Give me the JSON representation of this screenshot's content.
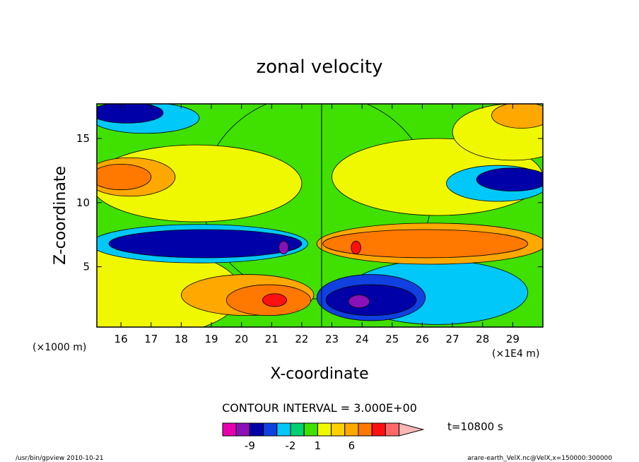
{
  "chart_data": {
    "type": "heatmap",
    "title": "zonal velocity",
    "xlabel": "X-coordinate",
    "ylabel": "Z-coordinate",
    "x_ticks": [
      16,
      17,
      18,
      19,
      20,
      21,
      22,
      23,
      24,
      25,
      26,
      27,
      28,
      29
    ],
    "x_unit": "(×1E4 m)",
    "xlim": [
      15.2,
      30.0
    ],
    "y_ticks": [
      5,
      10,
      15
    ],
    "y_unit": "(×1000 m)",
    "ylim": [
      0.3,
      17.7
    ],
    "contour_interval_text": "CONTOUR INTERVAL = 3.000E+00",
    "colorbar": {
      "colors": [
        "#e800b0",
        "#8a10b8",
        "#0000a8",
        "#1040e0",
        "#00c8f8",
        "#00d070",
        "#40e000",
        "#f0f800",
        "#ffd000",
        "#ffa800",
        "#ff7800",
        "#ff1010",
        "#ff6868",
        "#ffb8b8"
      ],
      "tick_labels": [
        {
          "label": "-9",
          "index": 1
        },
        {
          "label": "-2",
          "index": 4
        },
        {
          "label": "1",
          "index": 6
        },
        {
          "label": "6",
          "index": 8.5
        }
      ]
    },
    "time_label": "t=10800 s",
    "regions": [
      {
        "level": "green",
        "color": "#40e000",
        "cx": 22.5,
        "cy": 10.5,
        "rx": 3.8,
        "ry": 8.0
      },
      {
        "level": "yellow",
        "color": "#f0f800",
        "cx": 18.5,
        "cy": 11.5,
        "rx": 3.5,
        "ry": 3.0
      },
      {
        "level": "yellow",
        "color": "#f0f800",
        "cx": 26.5,
        "cy": 12.0,
        "rx": 3.5,
        "ry": 3.0
      },
      {
        "level": "yellow",
        "color": "#f0f800",
        "cx": 16.5,
        "cy": 3.0,
        "rx": 3.5,
        "ry": 3.5
      },
      {
        "level": "cyan",
        "color": "#00c8f8",
        "cx": 26.5,
        "cy": 3.0,
        "rx": 3.0,
        "ry": 2.5
      },
      {
        "level": "yellow",
        "color": "#f0f800",
        "cx": 29.0,
        "cy": 15.5,
        "rx": 2.0,
        "ry": 2.2
      },
      {
        "level": "orange",
        "color": "#ffa800",
        "cx": 29.3,
        "cy": 16.8,
        "rx": 1.0,
        "ry": 1.0
      },
      {
        "level": "cyan",
        "color": "#00c8f8",
        "cx": 16.8,
        "cy": 16.6,
        "rx": 1.8,
        "ry": 1.2
      },
      {
        "level": "navy",
        "color": "#0000a8",
        "cx": 16.2,
        "cy": 17.0,
        "rx": 1.2,
        "ry": 0.8
      },
      {
        "level": "orange",
        "color": "#ffa800",
        "cx": 16.3,
        "cy": 12.0,
        "rx": 1.5,
        "ry": 1.5
      },
      {
        "level": "dark-orange",
        "color": "#ff7800",
        "cx": 16.0,
        "cy": 12.0,
        "rx": 1.0,
        "ry": 1.0
      },
      {
        "level": "cyan",
        "color": "#00c8f8",
        "cx": 28.5,
        "cy": 11.5,
        "rx": 1.7,
        "ry": 1.4
      },
      {
        "level": "navy",
        "color": "#0000a8",
        "cx": 29.0,
        "cy": 11.8,
        "rx": 1.2,
        "ry": 0.9
      },
      {
        "level": "cyan",
        "color": "#00c8f8",
        "cx": 18.6,
        "cy": 6.8,
        "rx": 3.6,
        "ry": 1.5
      },
      {
        "level": "navy",
        "color": "#0000a8",
        "cx": 18.8,
        "cy": 6.8,
        "rx": 3.2,
        "ry": 1.1
      },
      {
        "level": "purple",
        "color": "#8a10b8",
        "cx": 21.4,
        "cy": 6.5,
        "rx": 0.16,
        "ry": 0.5
      },
      {
        "level": "orange",
        "color": "#ffa800",
        "cx": 26.3,
        "cy": 6.8,
        "rx": 3.8,
        "ry": 1.6
      },
      {
        "level": "dark-orange",
        "color": "#ff7800",
        "cx": 26.1,
        "cy": 6.8,
        "rx": 3.4,
        "ry": 1.1
      },
      {
        "level": "red",
        "color": "#ff1010",
        "cx": 23.8,
        "cy": 6.5,
        "rx": 0.16,
        "ry": 0.5
      },
      {
        "level": "orange",
        "color": "#ffa800",
        "cx": 20.2,
        "cy": 2.8,
        "rx": 2.2,
        "ry": 1.6
      },
      {
        "level": "dark-orange",
        "color": "#ff7800",
        "cx": 20.9,
        "cy": 2.4,
        "rx": 1.4,
        "ry": 1.2
      },
      {
        "level": "red",
        "color": "#ff1010",
        "cx": 21.1,
        "cy": 2.4,
        "rx": 0.4,
        "ry": 0.5
      },
      {
        "level": "blue",
        "color": "#1040e0",
        "cx": 24.3,
        "cy": 2.6,
        "rx": 1.8,
        "ry": 1.8
      },
      {
        "level": "navy",
        "color": "#0000a8",
        "cx": 24.3,
        "cy": 2.4,
        "rx": 1.5,
        "ry": 1.2
      },
      {
        "level": "purple",
        "color": "#8a10b8",
        "cx": 23.9,
        "cy": 2.3,
        "rx": 0.35,
        "ry": 0.5
      }
    ]
  },
  "footer": {
    "left": "/usr/bin/gpview  2010-10-21",
    "right": "arare-earth_VelX.nc@VelX,x=150000:300000"
  }
}
